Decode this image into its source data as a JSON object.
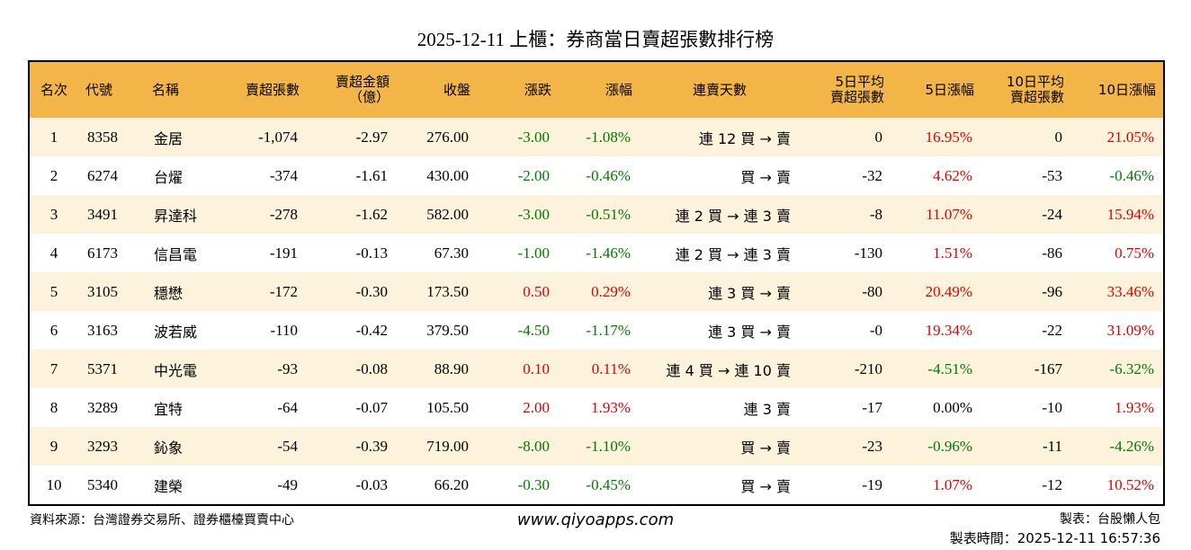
{
  "title": "2025-12-11 上櫃：券商當日賣超張數排行榜",
  "table": {
    "columns": [
      "名次",
      "代號",
      "名稱",
      "賣超張數",
      "賣超金額\n（億）",
      "收盤",
      "漲跌",
      "漲幅",
      "連賣天數",
      "5日平均\n賣超張數",
      "5日漲幅",
      "10日平均\n賣超張數",
      "10日漲幅"
    ],
    "rows": [
      [
        "1",
        "8358",
        "金居",
        "-1,074",
        "-2.97",
        "276.00",
        "-3.00",
        "-1.08%",
        "連 12 買 → 賣",
        "0",
        "16.95%",
        "0",
        "21.05%"
      ],
      [
        "2",
        "6274",
        "台燿",
        "-374",
        "-1.61",
        "430.00",
        "-2.00",
        "-0.46%",
        "買 → 賣",
        "-32",
        "4.62%",
        "-53",
        "-0.46%"
      ],
      [
        "3",
        "3491",
        "昇達科",
        "-278",
        "-1.62",
        "582.00",
        "-3.00",
        "-0.51%",
        "連 2 買 → 連 3 賣",
        "-8",
        "11.07%",
        "-24",
        "15.94%"
      ],
      [
        "4",
        "6173",
        "信昌電",
        "-191",
        "-0.13",
        "67.30",
        "-1.00",
        "-1.46%",
        "連 2 買 → 連 3 賣",
        "-130",
        "1.51%",
        "-86",
        "0.75%"
      ],
      [
        "5",
        "3105",
        "穩懋",
        "-172",
        "-0.30",
        "173.50",
        "0.50",
        "0.29%",
        "連 3 買 → 賣",
        "-80",
        "20.49%",
        "-96",
        "33.46%"
      ],
      [
        "6",
        "3163",
        "波若威",
        "-110",
        "-0.42",
        "379.50",
        "-4.50",
        "-1.17%",
        "連 3 買 → 賣",
        "-0",
        "19.34%",
        "-22",
        "31.09%"
      ],
      [
        "7",
        "5371",
        "中光電",
        "-93",
        "-0.08",
        "88.90",
        "0.10",
        "0.11%",
        "連 4 買 → 連 10 賣",
        "-210",
        "-4.51%",
        "-167",
        "-6.32%"
      ],
      [
        "8",
        "3289",
        "宜特",
        "-64",
        "-0.07",
        "105.50",
        "2.00",
        "1.93%",
        "連 3 賣",
        "-17",
        "0.00%",
        "-10",
        "1.93%"
      ],
      [
        "9",
        "3293",
        "鈊象",
        "-54",
        "-0.39",
        "719.00",
        "-8.00",
        "-1.10%",
        "買 → 賣",
        "-23",
        "-0.96%",
        "-11",
        "-4.26%"
      ],
      [
        "10",
        "5340",
        "建榮",
        "-49",
        "-0.03",
        "66.20",
        "-0.30",
        "-0.45%",
        "買 → 賣",
        "-19",
        "1.07%",
        "-12",
        "10.52%"
      ]
    ]
  },
  "footer": {
    "source": "資料來源：台灣證券交易所、證券櫃檯買賣中心",
    "url": "www.qiyoapps.com",
    "maker": "製表：台股懶人包",
    "time": "製表時間：2025-12-11 16:57:36"
  }
}
